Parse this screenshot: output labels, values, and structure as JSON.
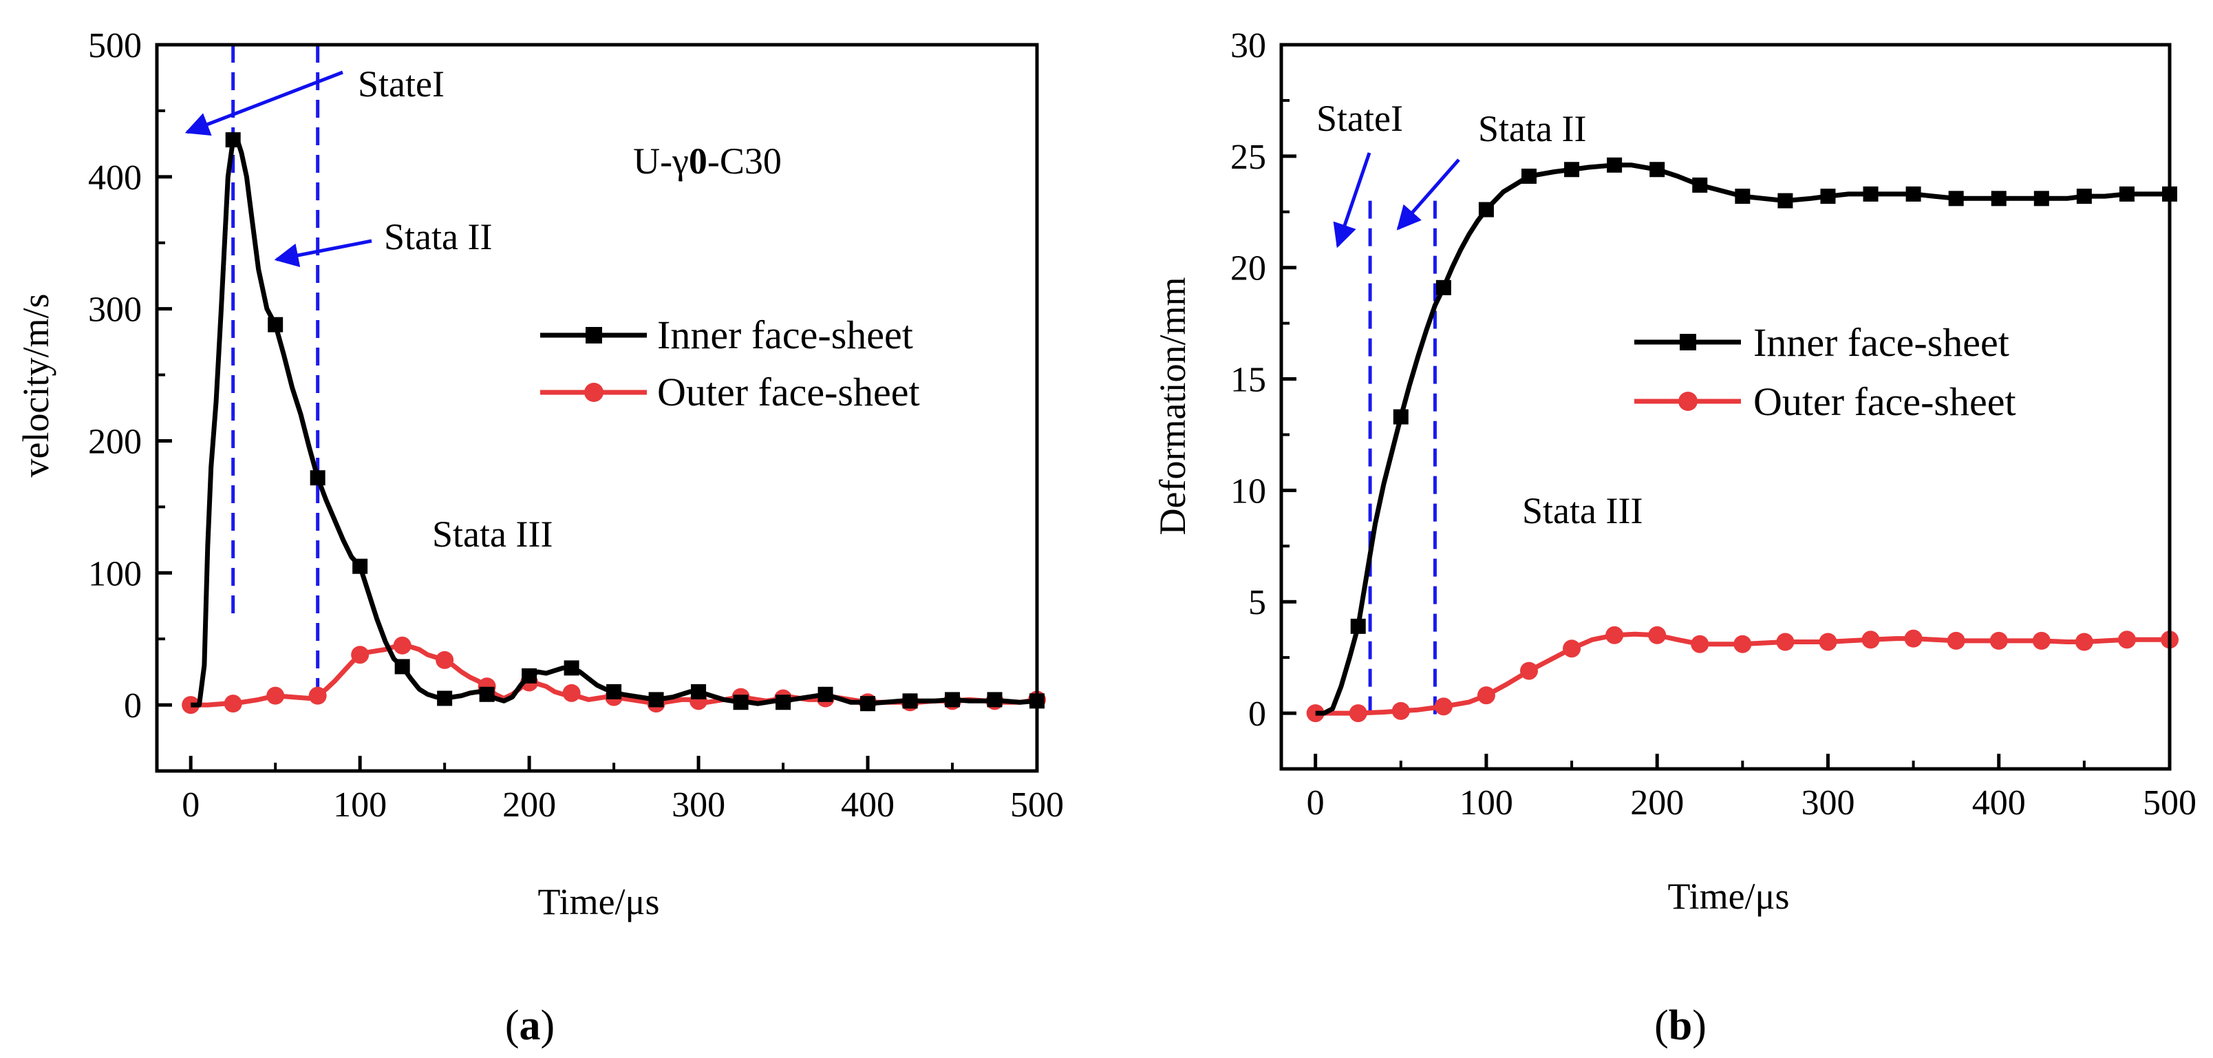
{
  "chart_data": [
    {
      "type": "line",
      "panel_label": "(a)",
      "panel_letter": "a",
      "xlabel": "Time/μs",
      "ylabel": "velocity/m/s",
      "xlim": [
        -20,
        500
      ],
      "ylim": [
        -50,
        500
      ],
      "xticks": [
        0,
        100,
        200,
        300,
        400,
        500
      ],
      "yticks": [
        0,
        100,
        200,
        300,
        400,
        500
      ],
      "legend_position": "center-right",
      "series": [
        {
          "name": "Inner face-sheet",
          "color": "#000000",
          "marker": "square",
          "x": [
            0,
            5,
            8,
            10,
            12,
            15,
            18,
            20,
            22,
            25,
            28,
            30,
            33,
            36,
            40,
            45,
            50,
            55,
            60,
            65,
            70,
            75,
            80,
            85,
            90,
            95,
            100,
            105,
            110,
            115,
            120,
            125,
            130,
            135,
            140,
            145,
            150,
            155,
            160,
            165,
            170,
            175,
            180,
            185,
            190,
            195,
            200,
            205,
            210,
            215,
            220,
            225,
            230,
            235,
            240,
            245,
            250,
            255,
            260,
            265,
            270,
            275,
            280,
            285,
            290,
            295,
            300,
            305,
            310,
            315,
            320,
            325,
            330,
            335,
            340,
            345,
            350,
            355,
            360,
            365,
            370,
            375,
            380,
            385,
            390,
            395,
            400,
            410,
            420,
            425,
            430,
            440,
            450,
            460,
            470,
            475,
            480,
            490,
            500
          ],
          "y": [
            0,
            0,
            30,
            120,
            180,
            230,
            300,
            350,
            400,
            428,
            426,
            418,
            400,
            370,
            330,
            300,
            288,
            265,
            240,
            220,
            195,
            172,
            155,
            140,
            125,
            112,
            105,
            85,
            65,
            48,
            35,
            29,
            20,
            12,
            8,
            6,
            5,
            6,
            7,
            9,
            10,
            8,
            5,
            3,
            6,
            15,
            22,
            25,
            24,
            26,
            28,
            28,
            25,
            20,
            15,
            12,
            10,
            8,
            7,
            6,
            5,
            4,
            5,
            6,
            8,
            10,
            10,
            8,
            6,
            4,
            3,
            2,
            2,
            1,
            2,
            3,
            2,
            4,
            5,
            6,
            7,
            8,
            6,
            4,
            2,
            2,
            1,
            2,
            3,
            3,
            3,
            3,
            4,
            3,
            3,
            4,
            3,
            2,
            3
          ],
          "marker_x": [
            25,
            50,
            75,
            100,
            125,
            150,
            175,
            200,
            225,
            250,
            275,
            300,
            325,
            350,
            375,
            400,
            425,
            450,
            475,
            500
          ]
        },
        {
          "name": "Outer face-sheet",
          "color": "#e8393c",
          "marker": "circle",
          "x": [
            0,
            10,
            20,
            25,
            30,
            40,
            50,
            60,
            70,
            75,
            80,
            85,
            90,
            95,
            100,
            105,
            110,
            115,
            120,
            125,
            130,
            135,
            140,
            145,
            150,
            155,
            160,
            165,
            170,
            175,
            180,
            185,
            190,
            195,
            200,
            205,
            210,
            215,
            220,
            225,
            230,
            235,
            240,
            245,
            250,
            255,
            260,
            265,
            270,
            275,
            280,
            285,
            290,
            295,
            300,
            305,
            310,
            315,
            320,
            325,
            330,
            335,
            340,
            345,
            350,
            355,
            360,
            365,
            370,
            375,
            380,
            385,
            390,
            395,
            400,
            410,
            420,
            425,
            430,
            440,
            450,
            460,
            470,
            475,
            480,
            490,
            500
          ],
          "y": [
            0,
            0,
            1,
            1,
            2,
            4,
            7,
            6,
            5,
            7,
            12,
            18,
            25,
            32,
            38,
            40,
            41,
            42,
            44,
            45,
            44,
            42,
            38,
            36,
            34,
            30,
            25,
            21,
            18,
            14,
            8,
            5,
            8,
            13,
            17,
            16,
            14,
            10,
            8,
            9,
            6,
            4,
            5,
            6,
            6,
            5,
            4,
            3,
            2,
            1,
            2,
            3,
            4,
            4,
            3,
            2,
            3,
            4,
            5,
            6,
            5,
            4,
            3,
            4,
            5,
            6,
            5,
            4,
            4,
            5,
            6,
            5,
            4,
            3,
            2,
            2,
            2,
            2,
            2,
            3,
            3,
            4,
            3,
            3,
            2,
            2,
            4
          ],
          "marker_x": [
            0,
            25,
            50,
            75,
            100,
            125,
            150,
            175,
            200,
            225,
            250,
            275,
            300,
            325,
            350,
            375,
            400,
            425,
            450,
            475,
            500
          ]
        }
      ],
      "vlines": [
        25,
        75
      ],
      "annotations": [
        {
          "text": "StateI"
        },
        {
          "text": "Stata II"
        },
        {
          "text": "Stata III"
        },
        {
          "text": "U-γ0-C30",
          "pre": "U-γ",
          "bold": "0",
          "post": "-C30"
        }
      ]
    },
    {
      "type": "line",
      "panel_label": "(b)",
      "panel_letter": "b",
      "xlabel": "Time/μs",
      "ylabel": "Deformation/mm",
      "xlim": [
        -20,
        500
      ],
      "ylim": [
        -2.5,
        30
      ],
      "xticks": [
        0,
        100,
        200,
        300,
        400,
        500
      ],
      "yticks": [
        0,
        5,
        10,
        15,
        20,
        25,
        30
      ],
      "legend_position": "center-right",
      "series": [
        {
          "name": "Inner face-sheet",
          "color": "#000000",
          "marker": "square",
          "x": [
            0,
            5,
            10,
            15,
            20,
            25,
            30,
            35,
            40,
            45,
            50,
            55,
            60,
            65,
            70,
            75,
            80,
            85,
            90,
            95,
            100,
            110,
            125,
            140,
            150,
            160,
            175,
            185,
            200,
            212,
            225,
            240,
            250,
            262,
            275,
            290,
            300,
            312,
            325,
            340,
            350,
            362,
            375,
            390,
            400,
            412,
            425,
            440,
            450,
            462,
            475,
            490,
            500
          ],
          "y": [
            0,
            0,
            0.2,
            1.2,
            2.5,
            3.9,
            6.2,
            8.5,
            10.3,
            11.8,
            13.3,
            14.7,
            16.0,
            17.2,
            18.3,
            19.1,
            20.0,
            20.8,
            21.5,
            22.1,
            22.6,
            23.4,
            24.1,
            24.3,
            24.4,
            24.5,
            24.6,
            24.6,
            24.4,
            24.1,
            23.7,
            23.4,
            23.2,
            23.1,
            23.0,
            23.1,
            23.2,
            23.3,
            23.3,
            23.3,
            23.3,
            23.2,
            23.1,
            23.1,
            23.1,
            23.1,
            23.1,
            23.1,
            23.2,
            23.2,
            23.3,
            23.3,
            23.3
          ],
          "marker_x": [
            25,
            50,
            75,
            100,
            125,
            150,
            175,
            200,
            225,
            250,
            275,
            300,
            325,
            350,
            375,
            400,
            425,
            450,
            475,
            500
          ]
        },
        {
          "name": "Outer face-sheet",
          "color": "#e8393c",
          "marker": "circle",
          "x": [
            0,
            25,
            40,
            50,
            60,
            75,
            90,
            100,
            112,
            125,
            140,
            150,
            162,
            175,
            187,
            200,
            212,
            225,
            240,
            250,
            262,
            275,
            290,
            300,
            312,
            325,
            340,
            350,
            362,
            375,
            390,
            400,
            412,
            425,
            440,
            450,
            462,
            475,
            490,
            500
          ],
          "y": [
            0,
            0,
            0.05,
            0.1,
            0.15,
            0.3,
            0.5,
            0.8,
            1.3,
            1.9,
            2.5,
            2.9,
            3.3,
            3.5,
            3.55,
            3.5,
            3.3,
            3.1,
            3.1,
            3.1,
            3.15,
            3.2,
            3.2,
            3.2,
            3.25,
            3.3,
            3.35,
            3.35,
            3.3,
            3.25,
            3.25,
            3.25,
            3.25,
            3.25,
            3.2,
            3.2,
            3.25,
            3.3,
            3.3,
            3.3
          ],
          "marker_x": [
            0,
            25,
            50,
            75,
            100,
            125,
            150,
            175,
            200,
            225,
            250,
            275,
            300,
            325,
            350,
            375,
            400,
            425,
            450,
            475,
            500
          ]
        }
      ],
      "vlines": [
        32,
        70
      ],
      "annotations": [
        {
          "text": "StateI"
        },
        {
          "text": "Stata II"
        },
        {
          "text": "Stata III"
        }
      ]
    }
  ]
}
